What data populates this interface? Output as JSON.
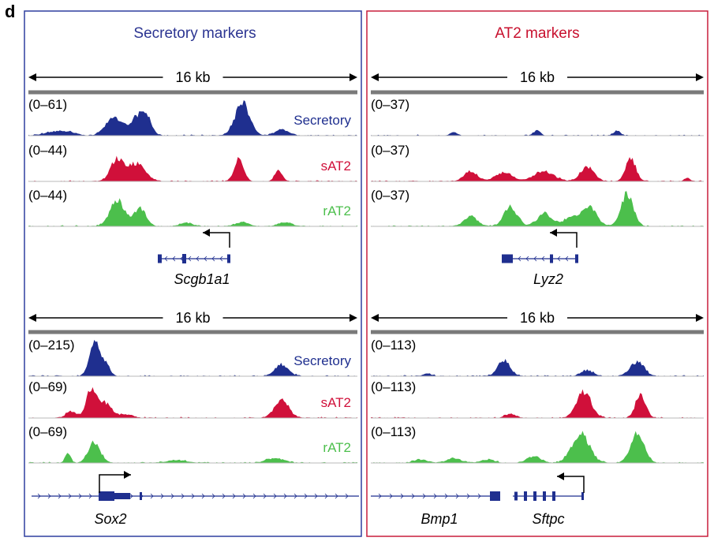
{
  "figure": {
    "panel_label": "d",
    "colors": {
      "secretory": "#1f2f8f",
      "sAT2": "#d0103a",
      "rAT2": "#4cbf4c",
      "secretory_frame": "#2f3f9f",
      "at2_frame": "#c81e3c",
      "gene": "#1f2f8f",
      "scale_bar": "#7a7a7a",
      "baseline": "#b8b8b8"
    },
    "panels": [
      {
        "title": "Secretory markers",
        "title_color": "#2c3592",
        "rows": [
          {
            "ruler_label": "16 kb",
            "tracks": [
              {
                "range": "(0–61)",
                "label": "Secretory",
                "color_key": "secretory",
                "peaks": [
                  [
                    0.08,
                    0.03,
                    0.12
                  ],
                  [
                    0.13,
                    0.02,
                    0.08
                  ],
                  [
                    0.26,
                    0.025,
                    0.55
                  ],
                  [
                    0.33,
                    0.02,
                    0.55
                  ],
                  [
                    0.36,
                    0.015,
                    0.5
                  ],
                  [
                    0.65,
                    0.022,
                    0.98
                  ],
                  [
                    0.77,
                    0.02,
                    0.18
                  ]
                ]
              },
              {
                "range": "(0–44)",
                "label": "sAT2",
                "color_key": "sAT2",
                "peaks": [
                  [
                    0.27,
                    0.02,
                    0.68
                  ],
                  [
                    0.33,
                    0.025,
                    0.55
                  ],
                  [
                    0.64,
                    0.014,
                    0.7
                  ],
                  [
                    0.76,
                    0.012,
                    0.3
                  ]
                ]
              },
              {
                "range": "(0–44)",
                "label": "rAT2",
                "color_key": "rAT2",
                "peaks": [
                  [
                    0.27,
                    0.022,
                    0.82
                  ],
                  [
                    0.34,
                    0.018,
                    0.56
                  ],
                  [
                    0.48,
                    0.02,
                    0.1
                  ],
                  [
                    0.65,
                    0.02,
                    0.12
                  ],
                  [
                    0.78,
                    0.02,
                    0.12
                  ]
                ]
              }
            ],
            "gene_labels": [
              "Scgb1a1"
            ]
          },
          {
            "ruler_label": "16 kb",
            "tracks": [
              {
                "range": "(0–215)",
                "label": "Secretory",
                "color_key": "secretory",
                "peaks": [
                  [
                    0.2,
                    0.015,
                    0.95
                  ],
                  [
                    0.23,
                    0.015,
                    0.4
                  ],
                  [
                    0.77,
                    0.02,
                    0.35
                  ]
                ]
              },
              {
                "range": "(0–69)",
                "label": "sAT2",
                "color_key": "sAT2",
                "peaks": [
                  [
                    0.13,
                    0.015,
                    0.2
                  ],
                  [
                    0.19,
                    0.015,
                    0.85
                  ],
                  [
                    0.23,
                    0.022,
                    0.48
                  ],
                  [
                    0.3,
                    0.02,
                    0.1
                  ],
                  [
                    0.77,
                    0.022,
                    0.52
                  ]
                ]
              },
              {
                "range": "(0–69)",
                "label": "rAT2",
                "color_key": "rAT2",
                "peaks": [
                  [
                    0.12,
                    0.008,
                    0.3
                  ],
                  [
                    0.2,
                    0.018,
                    0.62
                  ],
                  [
                    0.45,
                    0.03,
                    0.08
                  ],
                  [
                    0.75,
                    0.025,
                    0.15
                  ]
                ]
              }
            ],
            "gene_labels": [
              "Sox2"
            ]
          }
        ]
      },
      {
        "title": "AT2 markers",
        "title_color": "#c8102e",
        "rows": [
          {
            "ruler_label": "16 kb",
            "tracks": [
              {
                "range": "(0–37)",
                "label": "",
                "color_key": "secretory",
                "peaks": [
                  [
                    0.25,
                    0.01,
                    0.1
                  ],
                  [
                    0.5,
                    0.01,
                    0.15
                  ],
                  [
                    0.74,
                    0.01,
                    0.15
                  ]
                ]
              },
              {
                "range": "(0–37)",
                "label": "",
                "color_key": "sAT2",
                "peaks": [
                  [
                    0.3,
                    0.02,
                    0.3
                  ],
                  [
                    0.4,
                    0.025,
                    0.28
                  ],
                  [
                    0.52,
                    0.03,
                    0.3
                  ],
                  [
                    0.65,
                    0.02,
                    0.45
                  ],
                  [
                    0.78,
                    0.015,
                    0.75
                  ],
                  [
                    0.95,
                    0.008,
                    0.1
                  ]
                ]
              },
              {
                "range": "(0–37)",
                "label": "",
                "color_key": "rAT2",
                "peaks": [
                  [
                    0.3,
                    0.02,
                    0.3
                  ],
                  [
                    0.42,
                    0.02,
                    0.6
                  ],
                  [
                    0.52,
                    0.02,
                    0.38
                  ],
                  [
                    0.62,
                    0.04,
                    0.3
                  ],
                  [
                    0.66,
                    0.018,
                    0.42
                  ],
                  [
                    0.77,
                    0.018,
                    1.0
                  ]
                ]
              }
            ],
            "gene_labels": [
              "Lyz2"
            ]
          },
          {
            "ruler_label": "16 kb",
            "tracks": [
              {
                "range": "(0–113)",
                "label": "",
                "color_key": "secretory",
                "peaks": [
                  [
                    0.17,
                    0.012,
                    0.08
                  ],
                  [
                    0.4,
                    0.018,
                    0.5
                  ],
                  [
                    0.65,
                    0.018,
                    0.18
                  ],
                  [
                    0.8,
                    0.02,
                    0.45
                  ]
                ]
              },
              {
                "range": "(0–113)",
                "label": "",
                "color_key": "sAT2",
                "peaks": [
                  [
                    0.42,
                    0.015,
                    0.12
                  ],
                  [
                    0.64,
                    0.022,
                    0.78
                  ],
                  [
                    0.81,
                    0.015,
                    0.72
                  ]
                ]
              },
              {
                "range": "(0–113)",
                "label": "",
                "color_key": "rAT2",
                "peaks": [
                  [
                    0.15,
                    0.02,
                    0.1
                  ],
                  [
                    0.25,
                    0.02,
                    0.15
                  ],
                  [
                    0.35,
                    0.02,
                    0.1
                  ],
                  [
                    0.49,
                    0.02,
                    0.2
                  ],
                  [
                    0.63,
                    0.026,
                    0.9
                  ],
                  [
                    0.8,
                    0.02,
                    0.9
                  ]
                ]
              }
            ],
            "gene_labels": [
              "Bmp1",
              "Sftpc"
            ]
          }
        ]
      }
    ]
  }
}
